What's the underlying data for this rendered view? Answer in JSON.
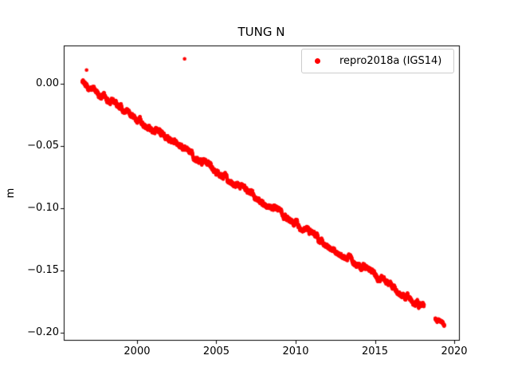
{
  "figure": {
    "background": "#ffffff",
    "axes_color": "#000000"
  },
  "chart_data": {
    "type": "scatter",
    "title": "TUNG N",
    "xlabel": "",
    "ylabel": "m",
    "xlim": [
      1995.38,
      2020.3
    ],
    "ylim": [
      -0.2064,
      0.0301
    ],
    "grid": false,
    "xticks": [
      2000,
      2005,
      2010,
      2015,
      2020
    ],
    "xtick_labels": [
      "2000",
      "2005",
      "2010",
      "2015",
      "2020"
    ],
    "yticks": [
      0.0,
      -0.05,
      -0.1,
      -0.15,
      -0.2
    ],
    "ytick_labels": [
      "0.00",
      "−0.05",
      "−0.10",
      "−0.15",
      "−0.20"
    ],
    "legend": {
      "label": "repro2018a (IGS14)",
      "location": "upper right",
      "marker": "dot",
      "marker_color": "#ff0000",
      "border_color": "#cccccc"
    },
    "series": [
      {
        "name": "repro2018a (IGS14)",
        "color": "#ff0000",
        "marker_radius_px": 2.1,
        "trend_m_per_year": -0.0084,
        "segments": [
          {
            "t_start": 1996.55,
            "t_end": 2018.1,
            "v_start": 0.001,
            "v_end": -0.18,
            "points_per_year": 300,
            "walk_amp_m": 0.0026,
            "jitter_m": 0.002
          },
          {
            "t_start": 2018.8,
            "t_end": 2019.38,
            "v_start": -0.189,
            "v_end": -0.1935,
            "points_per_year": 300,
            "walk_amp_m": 0.0012,
            "jitter_m": 0.0015
          }
        ],
        "outliers": [
          {
            "t": 1996.82,
            "v": 0.011
          },
          {
            "t": 2003.0,
            "v": 0.02
          },
          {
            "t": 2004.62,
            "v": -0.0635
          }
        ]
      }
    ]
  }
}
